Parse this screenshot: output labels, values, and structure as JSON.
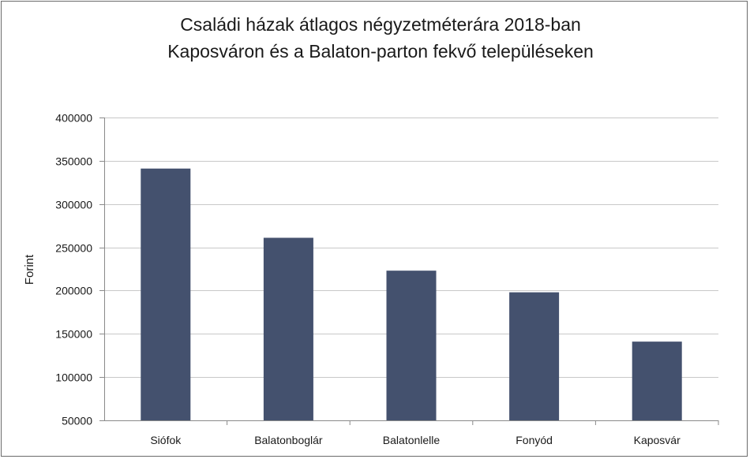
{
  "chart_data": {
    "type": "bar",
    "title_lines": [
      "Családi házak átlagos négyzetméterára 2018-ban",
      "Kaposváron és a Balaton-parton fekvő településeken"
    ],
    "xlabel": "",
    "ylabel": "Forint",
    "categories": [
      "Siófok",
      "Balatonboglár",
      "Balatonlelle",
      "Fonyód",
      "Kaposvár"
    ],
    "values": [
      341000,
      261000,
      223000,
      198000,
      141000
    ],
    "ylim": [
      50000,
      400000
    ],
    "yticks": [
      50000,
      100000,
      150000,
      200000,
      250000,
      300000,
      350000,
      400000
    ],
    "ytick_labels": [
      "50000",
      "100000",
      "150000",
      "200000",
      "250000",
      "300000",
      "350000",
      "400000"
    ],
    "grid": true,
    "legend": "none",
    "bar_color": "#44516e",
    "grid_color": "#c8c8c8",
    "axis_color": "#8a8a8a"
  }
}
